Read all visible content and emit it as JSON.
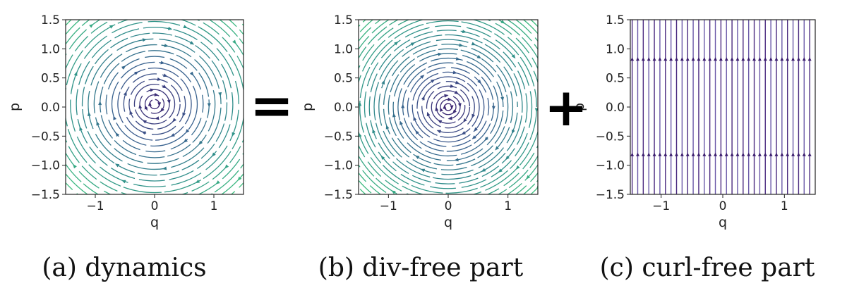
{
  "operators": {
    "equals": "=",
    "plus": "+"
  },
  "chart_data": [
    {
      "type": "streamplot",
      "field": "rotational",
      "caption": "(a) dynamics",
      "xlabel": "q",
      "ylabel": "p",
      "xlim": [
        -1.5,
        1.5
      ],
      "ylim": [
        -1.5,
        1.5
      ],
      "xticks": [
        -1,
        0,
        1
      ],
      "yticks": [
        1.5,
        1.0,
        0.5,
        0.0,
        -0.5,
        -1.0,
        -1.5
      ],
      "xtick_labels": [
        "−1",
        "0",
        "1"
      ],
      "ytick_labels": [
        "1.5",
        "1.0",
        "0.5",
        "0.0",
        "−0.5",
        "−1.0",
        "−1.5"
      ],
      "center": [
        0.0,
        0.05
      ],
      "radii": [
        0.08,
        0.16,
        0.25,
        0.34,
        0.43,
        0.52,
        0.62,
        0.72,
        0.82,
        0.92,
        1.02,
        1.12,
        1.22,
        1.32,
        1.42,
        1.52,
        1.62,
        1.72,
        1.82,
        1.92,
        2.02
      ],
      "colormap": [
        "#3b1d6e",
        "#3a5f8f",
        "#2e8f8a",
        "#3fbf7f"
      ]
    },
    {
      "type": "streamplot",
      "field": "rotational",
      "caption": "(b) div-free part",
      "xlabel": "q",
      "ylabel": "p",
      "xlim": [
        -1.5,
        1.5
      ],
      "ylim": [
        -1.5,
        1.5
      ],
      "xticks": [
        -1,
        0,
        1
      ],
      "yticks": [
        1.5,
        1.0,
        0.5,
        0.0,
        -0.5,
        -1.0,
        -1.5
      ],
      "xtick_labels": [
        "−1",
        "0",
        "1"
      ],
      "ytick_labels": [
        "1.5",
        "1.0",
        "0.5",
        "0.0",
        "−0.5",
        "−1.0",
        "−1.5"
      ],
      "center": [
        0.0,
        0.0
      ],
      "radii": [
        0.06,
        0.13,
        0.2,
        0.28,
        0.36,
        0.44,
        0.52,
        0.6,
        0.68,
        0.76,
        0.84,
        0.92,
        1.0,
        1.08,
        1.16,
        1.24,
        1.32,
        1.4,
        1.48,
        1.56,
        1.64,
        1.72,
        1.8,
        1.88,
        1.96,
        2.04
      ],
      "colormap": [
        "#3b1d6e",
        "#3a5f8f",
        "#2e8f8a",
        "#3fbf7f"
      ]
    },
    {
      "type": "streamplot",
      "field": "vertical",
      "caption": "(c) curl-free part",
      "xlabel": "q",
      "ylabel": "p",
      "xlim": [
        -1.5,
        1.5
      ],
      "ylim": [
        -1.5,
        1.5
      ],
      "xticks": [
        -1,
        0,
        1
      ],
      "yticks": [
        1.5,
        1.0,
        0.5,
        0.0,
        -0.5,
        -1.0,
        -1.5
      ],
      "xtick_labels": [
        "−1",
        "0",
        "1"
      ],
      "ytick_labels": [
        "1.5",
        "1.0",
        "0.5",
        "0.0",
        "−0.5",
        "−1.0",
        "−1.5"
      ],
      "line_q": [
        -1.47,
        -1.38,
        -1.29,
        -1.2,
        -1.11,
        -1.02,
        -0.93,
        -0.84,
        -0.75,
        -0.66,
        -0.57,
        -0.48,
        -0.39,
        -0.3,
        -0.21,
        -0.12,
        -0.03,
        0.06,
        0.15,
        0.24,
        0.33,
        0.42,
        0.51,
        0.6,
        0.69,
        0.78,
        0.87,
        0.96,
        1.05,
        1.14,
        1.23,
        1.32,
        1.41
      ],
      "arrow_p": [
        0.82,
        -0.82
      ],
      "colormap": [
        "#4a2a80",
        "#6a58a8"
      ]
    }
  ]
}
